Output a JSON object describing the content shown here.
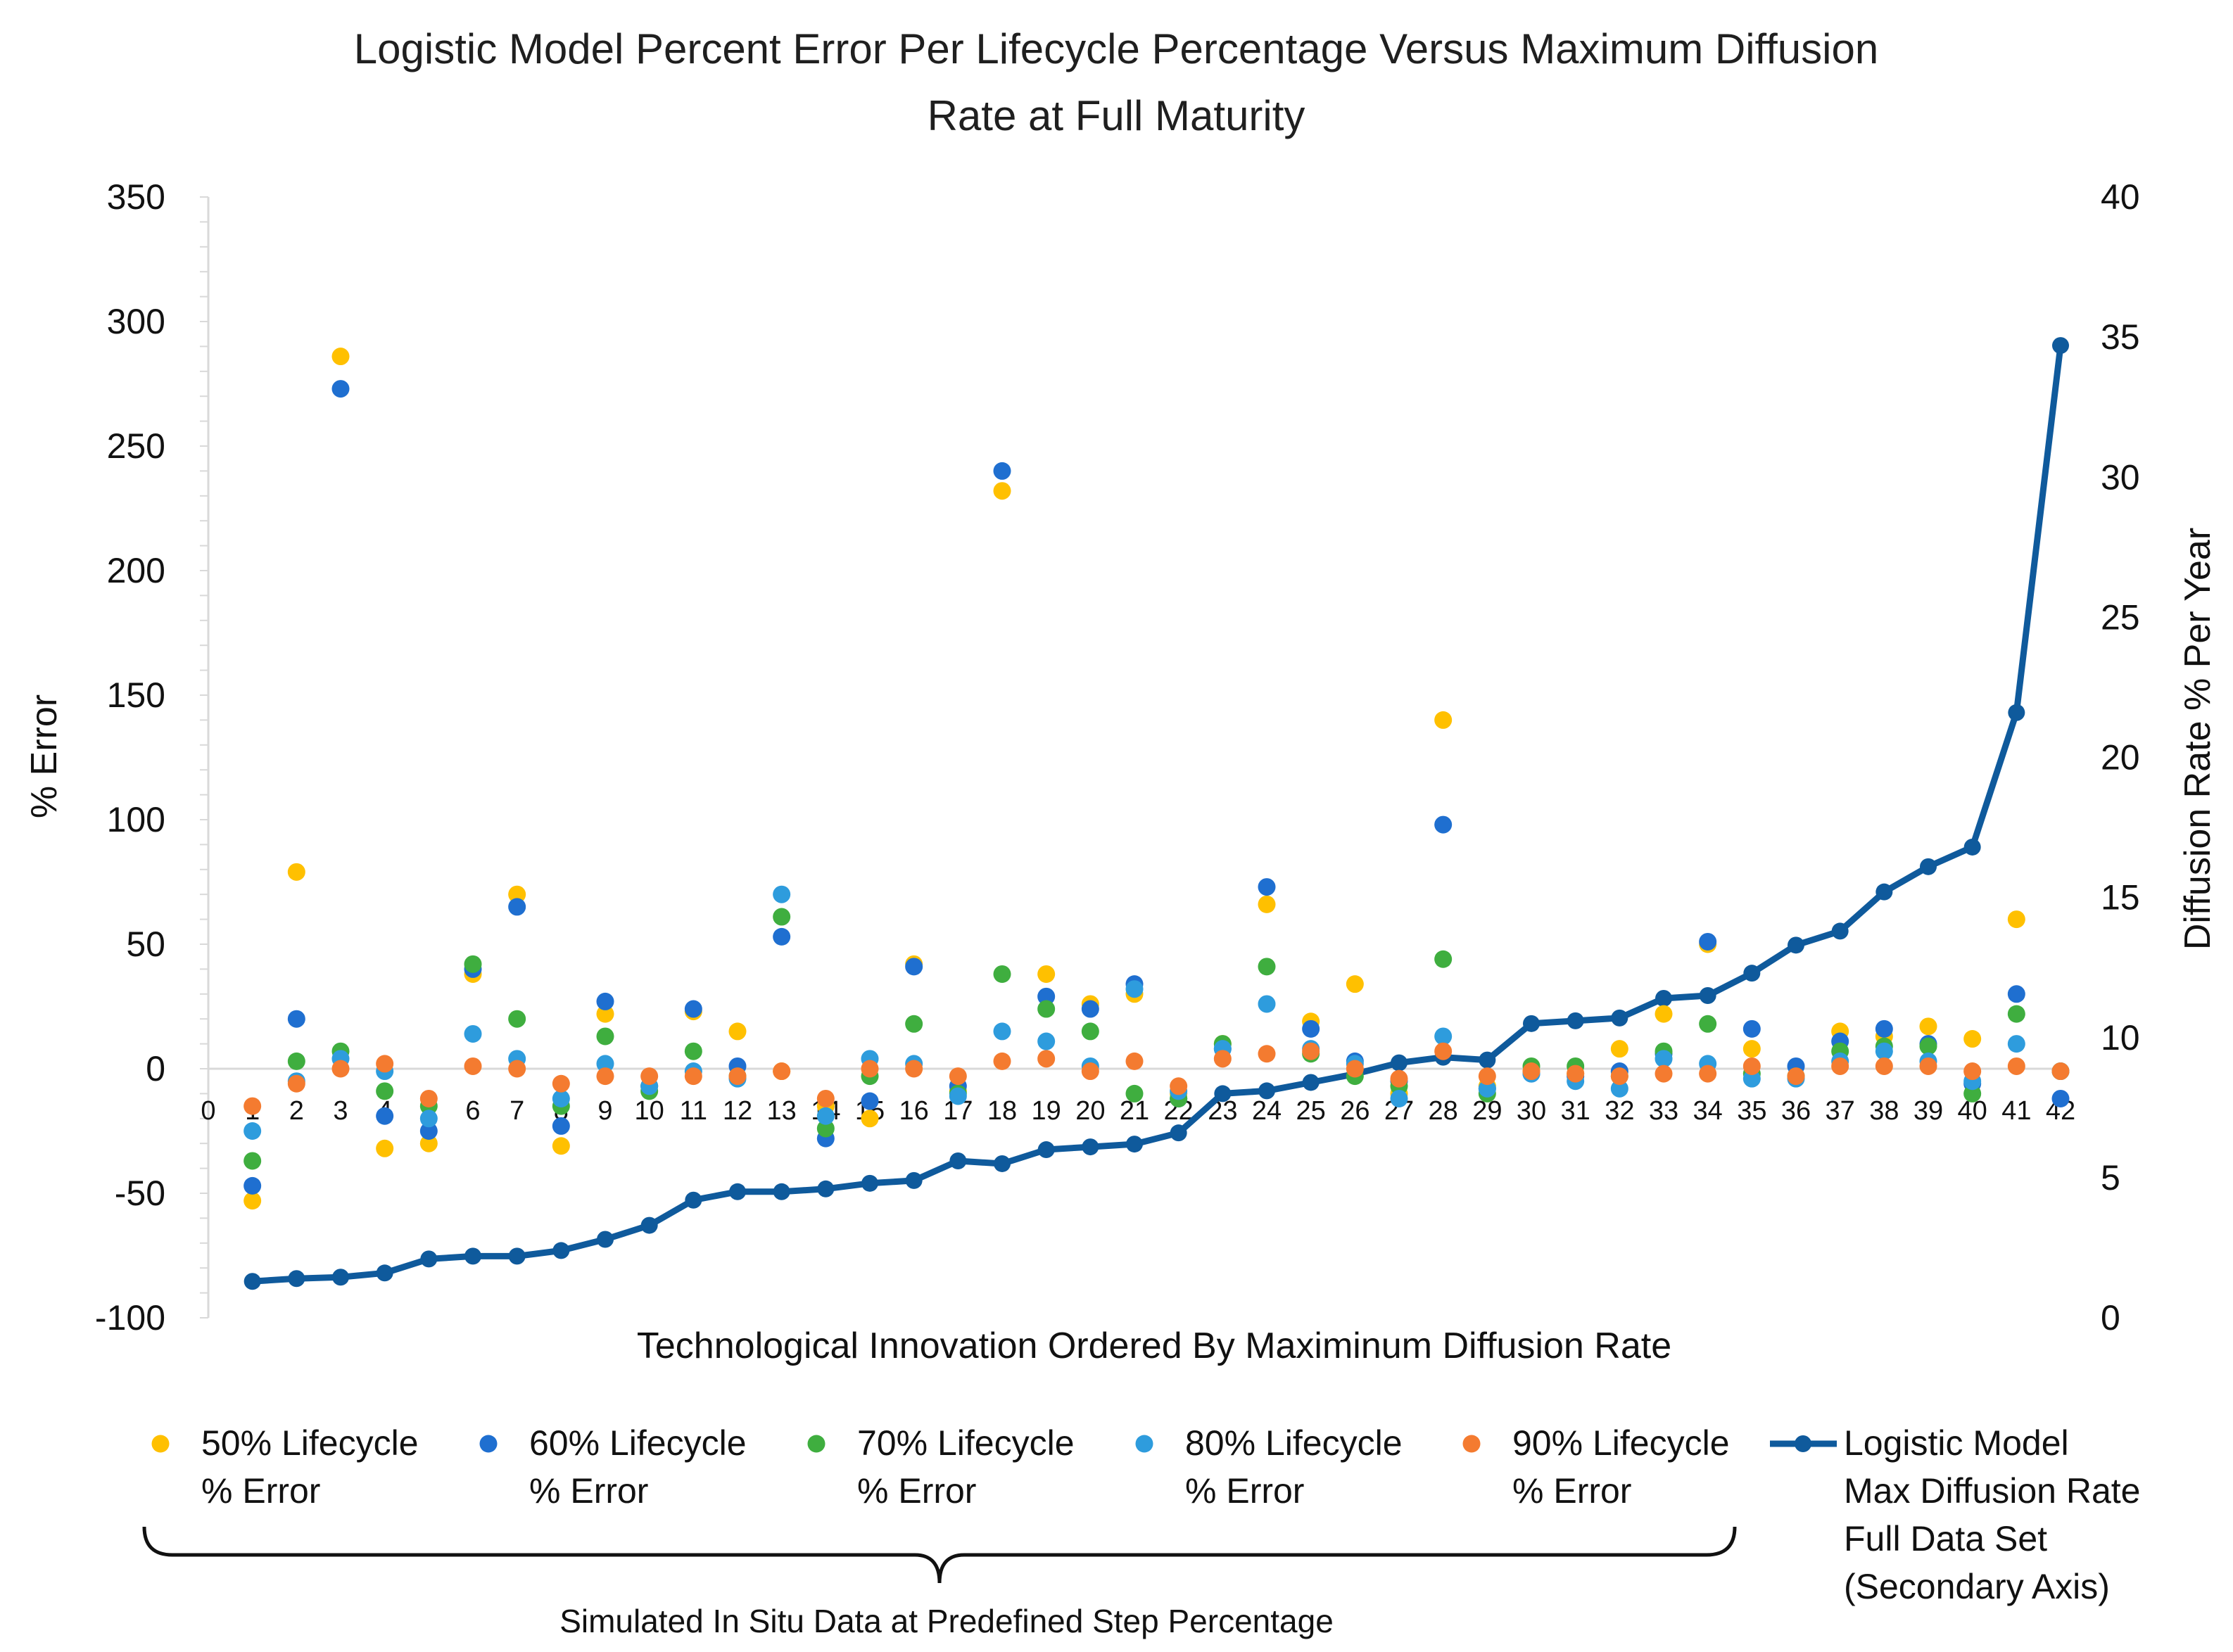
{
  "chart_data": {
    "type": "scatter",
    "title_lines": [
      "Logistic Model Percent Error Per Lifecycle Percentage Versus Maximum Diffusion",
      "Rate at Full Maturity"
    ],
    "xlabel": "Technological Innovation Ordered By Maximinum Diffusion Rate",
    "ylabel": "% Error",
    "y2label": "Diffusion Rate % Per Year",
    "xlim": [
      0,
      42
    ],
    "ylim": [
      -100,
      350
    ],
    "y2lim": [
      0,
      40
    ],
    "x_ticks": [
      0,
      1,
      2,
      3,
      4,
      5,
      6,
      7,
      8,
      9,
      10,
      11,
      12,
      13,
      14,
      15,
      16,
      17,
      18,
      19,
      20,
      21,
      22,
      23,
      24,
      25,
      26,
      27,
      28,
      29,
      30,
      31,
      32,
      33,
      34,
      35,
      36,
      37,
      38,
      39,
      40,
      41,
      42
    ],
    "y_ticks": [
      350,
      300,
      250,
      200,
      150,
      100,
      50,
      0,
      -50,
      -100
    ],
    "y2_ticks": [
      40,
      35,
      30,
      25,
      20,
      15,
      10,
      5,
      0
    ],
    "x": [
      1,
      2,
      3,
      4,
      5,
      6,
      7,
      8,
      9,
      10,
      11,
      12,
      13,
      14,
      15,
      16,
      17,
      18,
      19,
      20,
      21,
      22,
      23,
      24,
      25,
      26,
      27,
      28,
      29,
      30,
      31,
      32,
      33,
      34,
      35,
      36,
      37,
      38,
      39,
      40,
      41,
      42
    ],
    "series": [
      {
        "name": "50% Lifecycle % Error",
        "legend_lines": [
          "50% Lifecycle",
          "% Error"
        ],
        "color": "#FFC000",
        "kind": "scatter",
        "values": [
          -53,
          79,
          286,
          -32,
          -30,
          38,
          70,
          -31,
          22,
          -7,
          23,
          15,
          -1,
          -15,
          -20,
          42,
          -9,
          232,
          38,
          26,
          30,
          -10,
          10,
          66,
          19,
          34,
          -10,
          140,
          -7,
          -1,
          -2,
          8,
          22,
          50,
          8,
          -3,
          15,
          13,
          17,
          12,
          60,
          -1
        ]
      },
      {
        "name": "60% Lifecycle % Error",
        "legend_lines": [
          "60% Lifecycle",
          "% Error"
        ],
        "color": "#1F6FD0",
        "kind": "scatter",
        "values": [
          -47,
          20,
          273,
          -19,
          -25,
          40,
          65,
          -23,
          27,
          -7,
          24,
          1,
          53,
          -28,
          -13,
          41,
          -7,
          240,
          29,
          24,
          34,
          -12,
          8,
          73,
          16,
          3,
          -5,
          98,
          -8,
          -2,
          -3,
          -1,
          6,
          51,
          16,
          1,
          11,
          16,
          10,
          -6,
          30,
          -12
        ]
      },
      {
        "name": "70% Lifecycle % Error",
        "legend_lines": [
          "70% Lifecycle",
          "% Error"
        ],
        "color": "#3FAE3F",
        "kind": "scatter",
        "values": [
          -37,
          3,
          7,
          -9,
          -15,
          42,
          20,
          -15,
          13,
          -9,
          7,
          -3,
          61,
          -24,
          -3,
          18,
          -10,
          38,
          24,
          15,
          -10,
          -12,
          10,
          41,
          6,
          -3,
          -7,
          44,
          -10,
          1,
          1,
          -3,
          7,
          18,
          -2,
          -3,
          7,
          9,
          9,
          -10,
          22,
          -1
        ]
      },
      {
        "name": "80% Lifecycle % Error",
        "legend_lines": [
          "80% Lifecycle",
          "% Error"
        ],
        "color": "#2E9CDD",
        "kind": "scatter",
        "values": [
          -25,
          -5,
          4,
          -1,
          -20,
          14,
          4,
          -12,
          2,
          -7,
          -1,
          -4,
          70,
          -19,
          4,
          2,
          -11,
          15,
          11,
          1,
          32,
          -9,
          8,
          26,
          8,
          2,
          -12,
          13,
          -8,
          -2,
          -5,
          -8,
          4,
          2,
          -4,
          -4,
          3,
          7,
          3,
          -5,
          10,
          -1
        ]
      },
      {
        "name": "90% Lifecycle % Error",
        "legend_lines": [
          "90% Lifecycle",
          "% Error"
        ],
        "color": "#F47B30",
        "kind": "scatter",
        "values": [
          -15,
          -6,
          0,
          2,
          -12,
          1,
          0,
          -6,
          -3,
          -3,
          -3,
          -3,
          -1,
          -12,
          0,
          0,
          -3,
          3,
          4,
          -1,
          3,
          -7,
          4,
          6,
          7,
          0,
          -4,
          7,
          -3,
          -1,
          -2,
          -3,
          -2,
          -2,
          1,
          -3,
          1,
          1,
          1,
          -1,
          1,
          -1
        ]
      },
      {
        "name": "Logistic Model Max Diffusion Rate Full Data Set (Secondary Axis)",
        "legend_lines": [
          "Logistic Model",
          "Max Diffusion Rate",
          "Full Data Set",
          "(Secondary Axis)"
        ],
        "color": "#0F5A9C",
        "kind": "line",
        "axis": "secondary",
        "values": [
          1.3,
          1.4,
          1.45,
          1.6,
          2.1,
          2.2,
          2.2,
          2.4,
          2.8,
          3.3,
          4.2,
          4.5,
          4.5,
          4.6,
          4.8,
          4.9,
          5.6,
          5.5,
          6.0,
          6.1,
          6.2,
          6.6,
          8.0,
          8.1,
          8.4,
          8.7,
          9.1,
          9.3,
          9.2,
          10.5,
          10.6,
          10.7,
          11.4,
          11.5,
          12.3,
          13.3,
          13.8,
          15.2,
          16.1,
          16.8,
          21.6,
          34.7
        ]
      }
    ],
    "annotation": "Simulated In Situ Data at Predefined Step Percentage",
    "grid": false,
    "legend_position": "bottom"
  }
}
